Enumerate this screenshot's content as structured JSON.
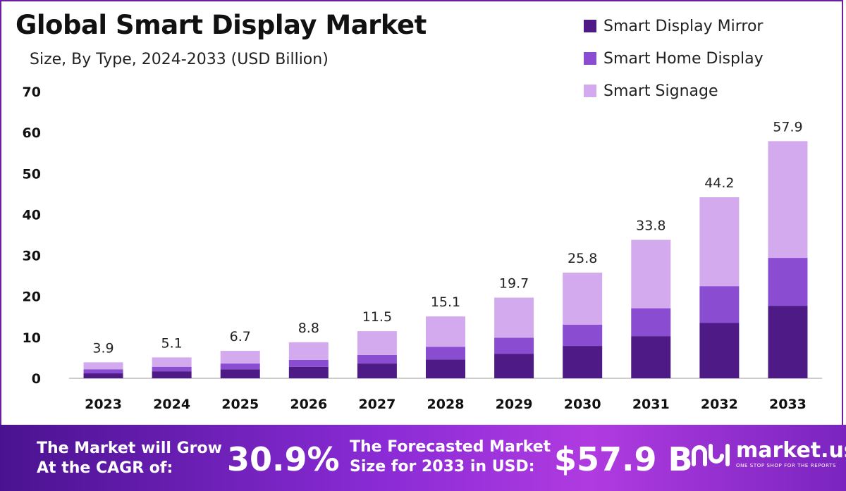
{
  "chart_data": {
    "type": "stacked-bar",
    "title": "Global Smart Display Market",
    "subtitle": "Size, By Type, 2024-2033 (USD Billion)",
    "categories": [
      "2023",
      "2024",
      "2025",
      "2026",
      "2027",
      "2028",
      "2029",
      "2030",
      "2031",
      "2032",
      "2033"
    ],
    "series": [
      {
        "name": "Smart Display Mirror",
        "color": "#4e1a86",
        "values": [
          1.2,
          1.7,
          2.2,
          2.8,
          3.6,
          4.6,
          6.0,
          7.9,
          10.3,
          13.5,
          17.7
        ]
      },
      {
        "name": "Smart Home Display",
        "color": "#8a4cd0",
        "values": [
          1.0,
          1.1,
          1.4,
          1.7,
          2.1,
          3.1,
          3.9,
          5.2,
          6.8,
          9.0,
          11.7
        ]
      },
      {
        "name": "Smart Signage",
        "color": "#d3aaee",
        "values": [
          1.7,
          2.3,
          3.1,
          4.3,
          5.8,
          7.4,
          9.8,
          12.7,
          16.7,
          21.7,
          28.5
        ]
      }
    ],
    "totals": [
      "3.9",
      "5.1",
      "6.7",
      "8.8",
      "11.5",
      "15.1",
      "19.7",
      "25.8",
      "33.8",
      "44.2",
      "57.9"
    ],
    "yticks": [
      "0",
      "10",
      "20",
      "30",
      "40",
      "50",
      "60",
      "70"
    ],
    "ylim": [
      0,
      70
    ],
    "xlabel": "",
    "ylabel": "",
    "legend_position": "top-right"
  },
  "footer": {
    "cagr_label_line1": "The Market will Grow",
    "cagr_label_line2": "At the CAGR of:",
    "cagr_value": "30.9%",
    "forecast_label_line1": "The Forecasted Market",
    "forecast_label_line2": "Size for 2033 in USD:",
    "forecast_value": "$57.9 B",
    "brand": "market.us",
    "tagline": "ONE STOP SHOP FOR THE REPORTS"
  }
}
